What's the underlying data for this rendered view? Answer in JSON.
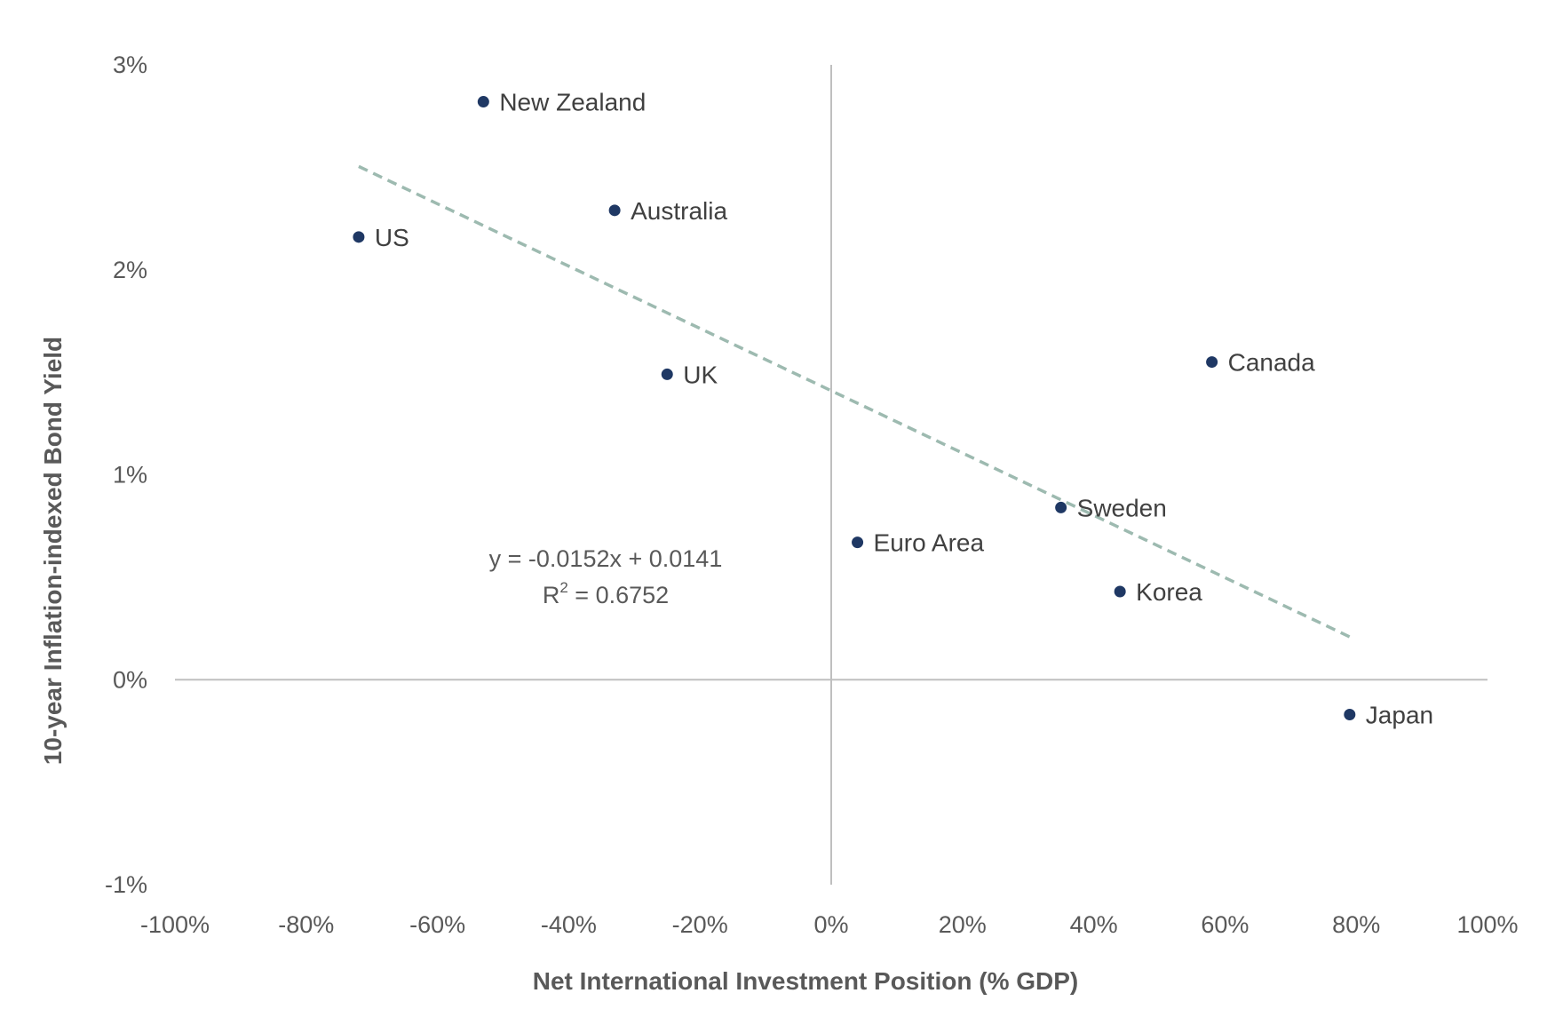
{
  "chart_data": {
    "type": "scatter",
    "title": "",
    "xlabel": "Net International Investment Position (% GDP)",
    "ylabel": "10-year Inflation-indexed Bond Yield",
    "xlim": [
      -1.0,
      1.0
    ],
    "ylim": [
      -0.01,
      0.03
    ],
    "x_ticks": [
      -1.0,
      -0.8,
      -0.6,
      -0.4,
      -0.2,
      0.0,
      0.2,
      0.4,
      0.6,
      0.8,
      1.0
    ],
    "x_tick_labels": [
      "-100%",
      "-80%",
      "-60%",
      "-40%",
      "-20%",
      "0%",
      "20%",
      "40%",
      "60%",
      "80%",
      "100%"
    ],
    "y_ticks": [
      -0.01,
      0.0,
      0.01,
      0.02,
      0.03
    ],
    "y_tick_labels": [
      "-1%",
      "0%",
      "1%",
      "2%",
      "3%"
    ],
    "grid": false,
    "legend": "none",
    "colors": {
      "point": "#1f3864",
      "trendline": "#9dbab0",
      "axis": "#bfbfbf"
    },
    "points": [
      {
        "label": "New Zealand",
        "x": -0.53,
        "y": 0.0282
      },
      {
        "label": "Australia",
        "x": -0.33,
        "y": 0.0229
      },
      {
        "label": "US",
        "x": -0.72,
        "y": 0.0216
      },
      {
        "label": "UK",
        "x": -0.25,
        "y": 0.0149
      },
      {
        "label": "Canada",
        "x": 0.58,
        "y": 0.0155
      },
      {
        "label": "Sweden",
        "x": 0.35,
        "y": 0.0084
      },
      {
        "label": "Euro Area",
        "x": 0.04,
        "y": 0.0067
      },
      {
        "label": "Korea",
        "x": 0.44,
        "y": 0.0043
      },
      {
        "label": "Japan",
        "x": 0.79,
        "y": -0.0017
      }
    ],
    "trendline": {
      "type": "linear",
      "slope": -0.0152,
      "intercept": 0.0141,
      "x_range": [
        -0.72,
        0.79
      ],
      "equation": "y = -0.0152x + 0.0141",
      "r2_label": "R",
      "r2_sup": "2",
      "r2_value": " = 0.6752"
    }
  }
}
